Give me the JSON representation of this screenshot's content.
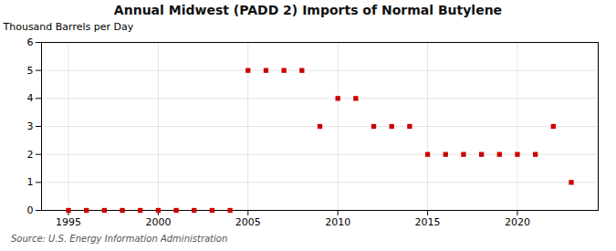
{
  "chart_data": {
    "type": "scatter",
    "title": "Annual Midwest (PADD 2) Imports of Normal Butylene",
    "ylabel": "Thousand Barrels per Day",
    "source": "Source: U.S. Energy Information Administration",
    "x": [
      1995,
      1996,
      1997,
      1998,
      1999,
      2000,
      2001,
      2002,
      2003,
      2004,
      2005,
      2006,
      2007,
      2008,
      2009,
      2010,
      2011,
      2012,
      2013,
      2014,
      2015,
      2016,
      2017,
      2018,
      2019,
      2020,
      2021,
      2022,
      2023
    ],
    "values": [
      0,
      0,
      0,
      0,
      0,
      0,
      0,
      0,
      0,
      0,
      5,
      5,
      5,
      5,
      3,
      4,
      4,
      3,
      3,
      3,
      2,
      2,
      2,
      2,
      2,
      2,
      2,
      3,
      1
    ],
    "color": "#cc0000",
    "marker": "square",
    "xlim": [
      1993.5,
      2024.5
    ],
    "xticks": [
      1995,
      2000,
      2005,
      2010,
      2015,
      2020
    ],
    "ylim": [
      0,
      6
    ],
    "yticks": [
      0,
      1,
      2,
      3,
      4,
      5,
      6
    ],
    "grid": true
  }
}
